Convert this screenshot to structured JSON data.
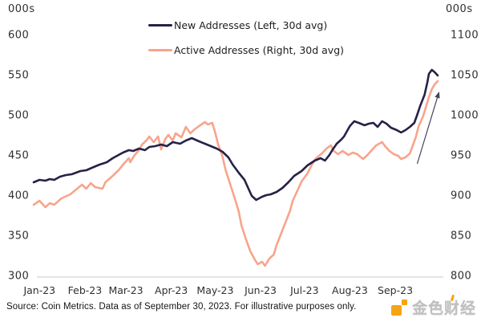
{
  "chart_data": {
    "type": "line",
    "title": "",
    "legend_position": "top-center",
    "grid": false,
    "x_axis": {
      "tick_labels": [
        "Jan-23",
        "Feb-23",
        "Mar-23",
        "Apr-23",
        "May-23",
        "Jun-23",
        "Jul-23",
        "Aug-23",
        "Sep-23"
      ],
      "tick_days": [
        4,
        35,
        63,
        94,
        124,
        155,
        185,
        216,
        247
      ],
      "domain_days": [
        0,
        276
      ]
    },
    "y_left": {
      "unit": "000s",
      "min": 300,
      "max": 600,
      "ticks": [
        600,
        550,
        500,
        450,
        400,
        350,
        300
      ]
    },
    "y_right": {
      "unit": "000s",
      "min": 800,
      "max": 1100,
      "ticks": [
        1100,
        1050,
        1000,
        950,
        900,
        850,
        800
      ]
    },
    "series": [
      {
        "name": "New Addresses (Left, 30d avg)",
        "axis": "left",
        "color": "#252248",
        "points": [
          [
            0,
            416
          ],
          [
            4,
            419
          ],
          [
            8,
            418
          ],
          [
            11,
            420
          ],
          [
            14,
            419
          ],
          [
            18,
            423
          ],
          [
            22,
            425
          ],
          [
            26,
            426
          ],
          [
            32,
            430
          ],
          [
            36,
            431
          ],
          [
            41,
            435
          ],
          [
            45,
            438
          ],
          [
            50,
            441
          ],
          [
            54,
            446
          ],
          [
            58,
            450
          ],
          [
            61,
            453
          ],
          [
            65,
            456
          ],
          [
            68,
            455
          ],
          [
            72,
            458
          ],
          [
            76,
            456
          ],
          [
            79,
            460
          ],
          [
            83,
            461
          ],
          [
            87,
            463
          ],
          [
            91,
            461
          ],
          [
            95,
            466
          ],
          [
            100,
            464
          ],
          [
            104,
            468
          ],
          [
            108,
            471
          ],
          [
            113,
            467
          ],
          [
            117,
            464
          ],
          [
            121,
            461
          ],
          [
            125,
            458
          ],
          [
            129,
            454
          ],
          [
            133,
            447
          ],
          [
            136,
            438
          ],
          [
            140,
            428
          ],
          [
            144,
            419
          ],
          [
            147,
            407
          ],
          [
            149,
            399
          ],
          [
            152,
            394
          ],
          [
            156,
            398
          ],
          [
            159,
            400
          ],
          [
            162,
            401
          ],
          [
            166,
            404
          ],
          [
            170,
            409
          ],
          [
            174,
            416
          ],
          [
            178,
            424
          ],
          [
            183,
            430
          ],
          [
            187,
            437
          ],
          [
            192,
            443
          ],
          [
            196,
            446
          ],
          [
            199,
            443
          ],
          [
            202,
            450
          ],
          [
            204,
            456
          ],
          [
            207,
            464
          ],
          [
            210,
            469
          ],
          [
            212,
            473
          ],
          [
            216,
            486
          ],
          [
            219,
            492
          ],
          [
            222,
            490
          ],
          [
            226,
            487
          ],
          [
            229,
            489
          ],
          [
            232,
            490
          ],
          [
            235,
            485
          ],
          [
            238,
            492
          ],
          [
            241,
            489
          ],
          [
            244,
            484
          ],
          [
            248,
            481
          ],
          [
            251,
            478
          ],
          [
            254,
            481
          ],
          [
            257,
            485
          ],
          [
            260,
            490
          ],
          [
            262,
            500
          ],
          [
            264,
            511
          ],
          [
            267,
            525
          ],
          [
            269,
            541
          ],
          [
            270,
            551
          ],
          [
            272,
            556
          ],
          [
            274,
            553
          ],
          [
            276,
            549
          ]
        ]
      },
      {
        "name": "Active Addresses (Right, 30d avg)",
        "axis": "right",
        "color": "#f8a48c",
        "points": [
          [
            0,
            888
          ],
          [
            4,
            893
          ],
          [
            8,
            885
          ],
          [
            11,
            890
          ],
          [
            14,
            888
          ],
          [
            19,
            896
          ],
          [
            25,
            901
          ],
          [
            29,
            907
          ],
          [
            33,
            913
          ],
          [
            36,
            908
          ],
          [
            39,
            915
          ],
          [
            42,
            910
          ],
          [
            47,
            908
          ],
          [
            49,
            916
          ],
          [
            54,
            924
          ],
          [
            58,
            931
          ],
          [
            62,
            940
          ],
          [
            65,
            946
          ],
          [
            66,
            941
          ],
          [
            69,
            950
          ],
          [
            72,
            956
          ],
          [
            74,
            963
          ],
          [
            77,
            968
          ],
          [
            79,
            973
          ],
          [
            82,
            966
          ],
          [
            85,
            973
          ],
          [
            87,
            957
          ],
          [
            90,
            970
          ],
          [
            92,
            975
          ],
          [
            95,
            968
          ],
          [
            97,
            977
          ],
          [
            101,
            972
          ],
          [
            104,
            985
          ],
          [
            107,
            977
          ],
          [
            110,
            982
          ],
          [
            113,
            986
          ],
          [
            117,
            991
          ],
          [
            119,
            988
          ],
          [
            122,
            990
          ],
          [
            124,
            978
          ],
          [
            126,
            963
          ],
          [
            129,
            948
          ],
          [
            131,
            932
          ],
          [
            134,
            915
          ],
          [
            137,
            898
          ],
          [
            140,
            880
          ],
          [
            142,
            862
          ],
          [
            145,
            845
          ],
          [
            148,
            830
          ],
          [
            151,
            820
          ],
          [
            153,
            814
          ],
          [
            156,
            817
          ],
          [
            158,
            812
          ],
          [
            161,
            821
          ],
          [
            164,
            826
          ],
          [
            166,
            838
          ],
          [
            169,
            852
          ],
          [
            172,
            866
          ],
          [
            175,
            880
          ],
          [
            177,
            893
          ],
          [
            180,
            905
          ],
          [
            183,
            917
          ],
          [
            187,
            927
          ],
          [
            190,
            938
          ],
          [
            193,
            946
          ],
          [
            197,
            952
          ],
          [
            200,
            958
          ],
          [
            203,
            962
          ],
          [
            205,
            955
          ],
          [
            208,
            951
          ],
          [
            211,
            955
          ],
          [
            215,
            950
          ],
          [
            218,
            953
          ],
          [
            221,
            951
          ],
          [
            225,
            945
          ],
          [
            228,
            950
          ],
          [
            231,
            956
          ],
          [
            234,
            962
          ],
          [
            238,
            966
          ],
          [
            240,
            961
          ],
          [
            243,
            955
          ],
          [
            246,
            951
          ],
          [
            249,
            949
          ],
          [
            251,
            945
          ],
          [
            254,
            947
          ],
          [
            257,
            952
          ],
          [
            259,
            962
          ],
          [
            261,
            972
          ],
          [
            263,
            986
          ],
          [
            266,
            998
          ],
          [
            268,
            1010
          ],
          [
            270,
            1022
          ],
          [
            272,
            1032
          ],
          [
            274,
            1038
          ],
          [
            276,
            1042
          ]
        ]
      }
    ],
    "annotations": [
      {
        "type": "arrow",
        "axis": "right",
        "from": [
          262,
          939
        ],
        "to": [
          277,
          1029
        ],
        "color": "#44415e"
      }
    ],
    "axis_text_color": "#2f2f2f",
    "baseline_color": "#c9c9c9"
  },
  "footer": {
    "source_text": "Source: Coin Metrics. Data as of September 30, 2023. For illustrative purposes only."
  },
  "branding": {
    "logo_text": "金色财经",
    "logo_color": "#f6a413"
  }
}
